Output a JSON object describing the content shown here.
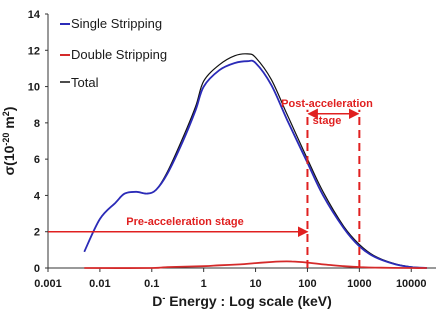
{
  "chart_data": {
    "type": "line",
    "xlabel_main": "D",
    "xlabel_sup": "-",
    "xlabel_rest": " Energy : Log scale (keV)",
    "ylabel_main": "σ(10",
    "ylabel_sup": "-20",
    "ylabel_rest": " m",
    "ylabel_sup2": "2",
    "ylabel_end": ")",
    "x_scale": "log",
    "xlim": [
      0.001,
      30000
    ],
    "ylim": [
      0,
      14
    ],
    "x_ticks": [
      0.001,
      0.01,
      0.1,
      1,
      10,
      100,
      1000,
      10000
    ],
    "x_tick_labels": [
      "0.001",
      "0.01",
      "0.1",
      "1",
      "10",
      "100",
      "1000",
      "10000"
    ],
    "y_ticks": [
      0,
      2,
      4,
      6,
      8,
      10,
      12,
      14
    ],
    "y_tick_labels": [
      "0",
      "2",
      "4",
      "6",
      "8",
      "10",
      "12",
      "14"
    ],
    "grid": false,
    "legend_position": "top-left",
    "series": [
      {
        "name": "Single Stripping",
        "color": "#2b2bb8",
        "x": [
          0.005,
          0.01,
          0.02,
          0.03,
          0.05,
          0.08,
          0.12,
          0.2,
          0.4,
          0.7,
          1,
          2,
          4,
          7,
          10,
          20,
          40,
          100,
          200,
          500,
          1000,
          2000,
          5000,
          10000,
          20000
        ],
        "y": [
          0.9,
          2.7,
          3.6,
          4.1,
          4.2,
          4.1,
          4.3,
          5.2,
          7.0,
          8.7,
          10.0,
          10.9,
          11.3,
          11.4,
          11.3,
          10.1,
          8.2,
          5.8,
          4.0,
          2.2,
          1.2,
          0.6,
          0.2,
          0.05,
          0.0
        ]
      },
      {
        "name": "Double Stripping",
        "color": "#d42a2a",
        "x": [
          0.005,
          0.1,
          0.2,
          1,
          2,
          5,
          10,
          20,
          30,
          50,
          100,
          200,
          500,
          1000,
          2000,
          10000,
          20000
        ],
        "y": [
          0.0,
          0.0,
          0.05,
          0.1,
          0.15,
          0.2,
          0.27,
          0.33,
          0.36,
          0.36,
          0.3,
          0.2,
          0.1,
          0.05,
          0.02,
          0.0,
          0.0
        ]
      },
      {
        "name": "Total",
        "color": "#111111",
        "x": [
          0.005,
          0.01,
          0.02,
          0.03,
          0.05,
          0.08,
          0.12,
          0.2,
          0.4,
          0.7,
          1,
          2,
          4,
          7,
          10,
          20,
          40,
          100,
          200,
          500,
          1000,
          2000,
          5000,
          10000,
          20000
        ],
        "y": [
          0.9,
          2.7,
          3.6,
          4.1,
          4.2,
          4.1,
          4.3,
          5.3,
          7.2,
          8.9,
          10.3,
          11.2,
          11.7,
          11.8,
          11.6,
          10.4,
          8.5,
          6.0,
          4.2,
          2.3,
          1.3,
          0.65,
          0.22,
          0.06,
          0.0
        ]
      }
    ],
    "annotations": {
      "pre_acceleration": {
        "text": "Pre-acceleration stage",
        "color": "#e02020",
        "arrow_y": 2.0,
        "arrow_x_start": 0.001,
        "arrow_x_end": 100
      },
      "post_acceleration": {
        "text_line1": "Post-acceleration",
        "text_line2": "stage",
        "color": "#e02020",
        "arrow_y": 8.5,
        "arrow_x_start": 100,
        "arrow_x_end": 1000
      },
      "dashed_lines_x": [
        100,
        1000
      ],
      "dashed_lines_y_range": [
        0,
        8.5
      ]
    }
  }
}
